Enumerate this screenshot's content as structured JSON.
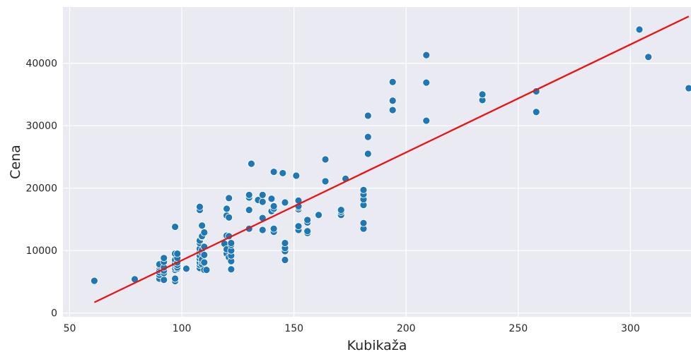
{
  "chart_data": {
    "type": "scatter",
    "title": "",
    "xlabel": "Kubikaža",
    "ylabel": "Cena",
    "xlim": [
      47,
      327
    ],
    "ylim": [
      -600,
      49000
    ],
    "x_ticks": [
      50,
      100,
      150,
      200,
      250,
      300
    ],
    "y_ticks": [
      0,
      10000,
      20000,
      30000,
      40000
    ],
    "grid": true,
    "colors": {
      "background": "#eaeaf2",
      "grid": "#ffffff",
      "points": "#1f77b4",
      "point_edge": "#ffffff",
      "fit_line": "#ee1111",
      "text": "#262626"
    },
    "series": [
      {
        "kind": "points",
        "x": [
          61,
          79,
          90,
          90,
          90,
          90,
          90,
          90,
          90,
          92,
          92,
          92,
          92,
          92,
          92,
          97,
          97,
          97,
          97,
          97,
          97,
          97,
          97,
          97,
          98,
          98,
          98,
          98,
          98,
          98,
          102,
          108,
          108,
          108,
          108,
          108,
          108,
          108,
          108,
          108,
          108,
          108,
          109,
          109,
          109,
          109,
          109,
          109,
          109,
          109,
          110,
          110,
          110,
          110,
          110,
          111,
          119,
          120,
          120,
          120,
          120,
          120,
          121,
          121,
          121,
          121,
          122,
          122,
          122,
          122,
          122,
          122,
          130,
          130,
          130,
          130,
          131,
          134,
          136,
          136,
          136,
          136,
          140,
          140,
          141,
          141,
          141,
          141,
          141,
          145,
          146,
          146,
          146,
          146,
          146,
          151,
          152,
          152,
          152,
          152,
          152,
          152,
          156,
          156,
          156,
          156,
          161,
          164,
          164,
          171,
          171,
          171,
          173,
          181,
          181,
          181,
          181,
          181,
          181,
          183,
          183,
          183,
          183,
          194,
          194,
          194,
          209,
          209,
          209,
          234,
          234,
          258,
          258,
          304,
          308,
          326
        ],
        "y": [
          5150,
          5400,
          5500,
          6100,
          6500,
          6900,
          7300,
          7600,
          7800,
          5300,
          6400,
          6800,
          7300,
          8200,
          8800,
          5100,
          5500,
          6900,
          7200,
          7600,
          7900,
          8500,
          9500,
          13800,
          7100,
          7300,
          7700,
          8100,
          8800,
          9500,
          7100,
          7200,
          7700,
          8100,
          8700,
          9200,
          9800,
          10300,
          11200,
          11600,
          16500,
          17000,
          7800,
          8300,
          8600,
          9600,
          10100,
          12200,
          12300,
          14000,
          6900,
          8100,
          9300,
          10600,
          12900,
          6900,
          11100,
          9500,
          10200,
          12400,
          15600,
          16700,
          8900,
          12300,
          15300,
          18400,
          7000,
          8300,
          9200,
          10000,
          10900,
          11200,
          13500,
          16500,
          18500,
          18900,
          23900,
          18100,
          13300,
          15200,
          17800,
          18900,
          16300,
          18300,
          13000,
          13500,
          16700,
          17100,
          22600,
          22400,
          8500,
          9900,
          10400,
          11200,
          17700,
          22000,
          13300,
          13900,
          16600,
          16900,
          17100,
          18000,
          12800,
          13100,
          14500,
          14900,
          15700,
          21100,
          24600,
          15700,
          16200,
          16500,
          21500,
          13500,
          14400,
          17300,
          18200,
          19000,
          19700,
          25500,
          28200,
          31600,
          31600,
          32500,
          34000,
          37000,
          30800,
          36900,
          41300,
          34100,
          35000,
          32200,
          35500,
          45400,
          41000,
          36000
        ]
      },
      {
        "kind": "fit_line",
        "x": [
          61,
          326
        ],
        "y": [
          1700,
          47500
        ]
      }
    ]
  }
}
